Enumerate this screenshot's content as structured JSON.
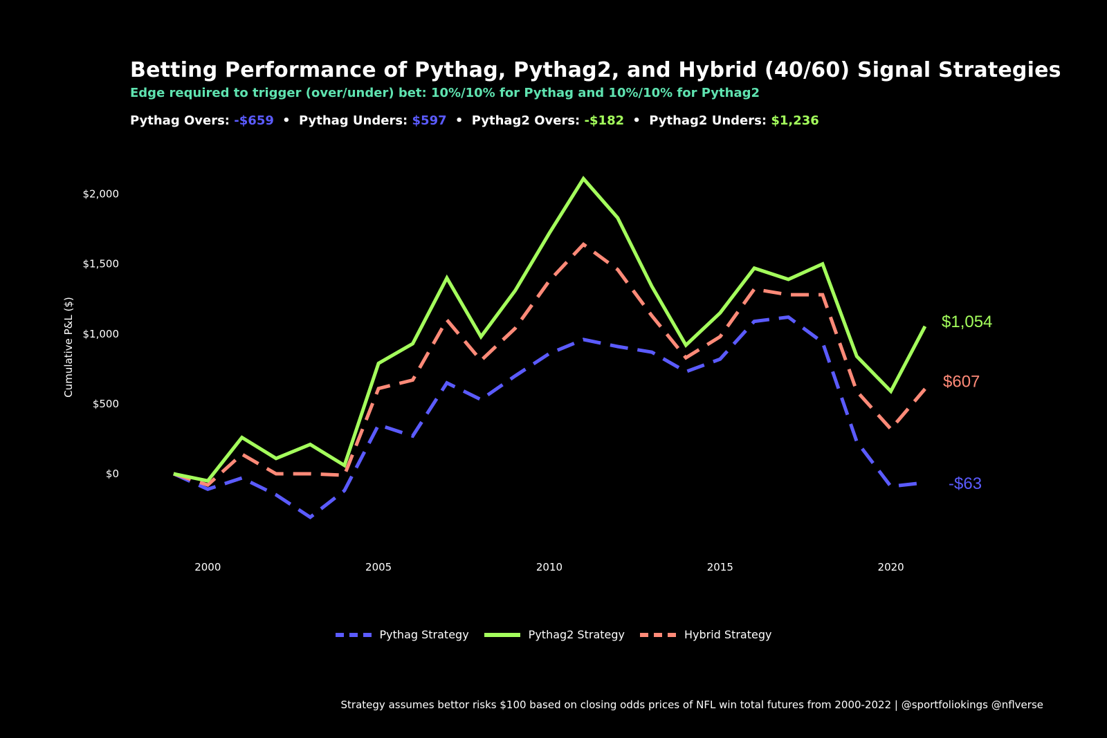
{
  "header": {
    "title": "Betting Performance of Pythag, Pythag2, and Hybrid (40/60) Signal Strategies",
    "subtitle": "Edge required to trigger (over/under) bet: 10%/10% for Pythag and 10%/10% for Pythag2",
    "stats": [
      {
        "label": "Pythag Overs:",
        "value": "-$659",
        "color": "#5b5bff"
      },
      {
        "label": "Pythag Unders:",
        "value": "$597",
        "color": "#5b5bff"
      },
      {
        "label": "Pythag2 Overs:",
        "value": "-$182",
        "color": "#a4ff5c"
      },
      {
        "label": "Pythag2 Unders:",
        "value": "$1,236",
        "color": "#a4ff5c"
      }
    ],
    "separator": "•"
  },
  "caption": "Strategy assumes bettor risks $100 based on closing odds prices of NFL win total futures from 2000-2022 | @sportfoliokings @nflverse",
  "chart_data": {
    "type": "line",
    "title": "Betting Performance of Pythag, Pythag2, and Hybrid (40/60) Signal Strategies",
    "xlabel": "",
    "ylabel": "Cumulative P&L ($)",
    "xlim": [
      1998.9,
      2022.6
    ],
    "ylim": [
      -420,
      2220
    ],
    "x_ticks": [
      2000,
      2005,
      2010,
      2015,
      2020
    ],
    "y_ticks": [
      0,
      500,
      1000,
      1500,
      2000
    ],
    "y_tick_labels": [
      "$0",
      "$500",
      "$1,000",
      "$1,500",
      "$2,000"
    ],
    "grid": false,
    "legend": "bottom",
    "x": [
      1999,
      2000,
      2001,
      2002,
      2003,
      2004,
      2005,
      2006,
      2007,
      2008,
      2009,
      2010,
      2011,
      2012,
      2013,
      2014,
      2015,
      2016,
      2017,
      2018,
      2019,
      2020,
      2021
    ],
    "series": [
      {
        "name": "Pythag Strategy",
        "color": "#5b5bff",
        "dash": true,
        "values": [
          0,
          -110,
          -30,
          -150,
          -310,
          -120,
          350,
          270,
          650,
          530,
          700,
          860,
          960,
          910,
          870,
          730,
          820,
          1090,
          1120,
          940,
          230,
          -90,
          -63
        ],
        "end_label": "-$63"
      },
      {
        "name": "Pythag2 Strategy",
        "color": "#a4ff5c",
        "dash": false,
        "values": [
          0,
          -50,
          260,
          110,
          210,
          60,
          790,
          930,
          1400,
          980,
          1310,
          1720,
          2110,
          1830,
          1340,
          920,
          1150,
          1470,
          1390,
          1500,
          840,
          590,
          1054
        ],
        "end_label": "$1,054"
      },
      {
        "name": "Hybrid Strategy",
        "color": "#ff8a78",
        "dash": true,
        "values": [
          0,
          -80,
          140,
          0,
          0,
          -10,
          610,
          670,
          1100,
          810,
          1040,
          1380,
          1640,
          1460,
          1130,
          830,
          980,
          1320,
          1280,
          1280,
          590,
          320,
          607
        ],
        "end_label": "$607"
      }
    ]
  }
}
